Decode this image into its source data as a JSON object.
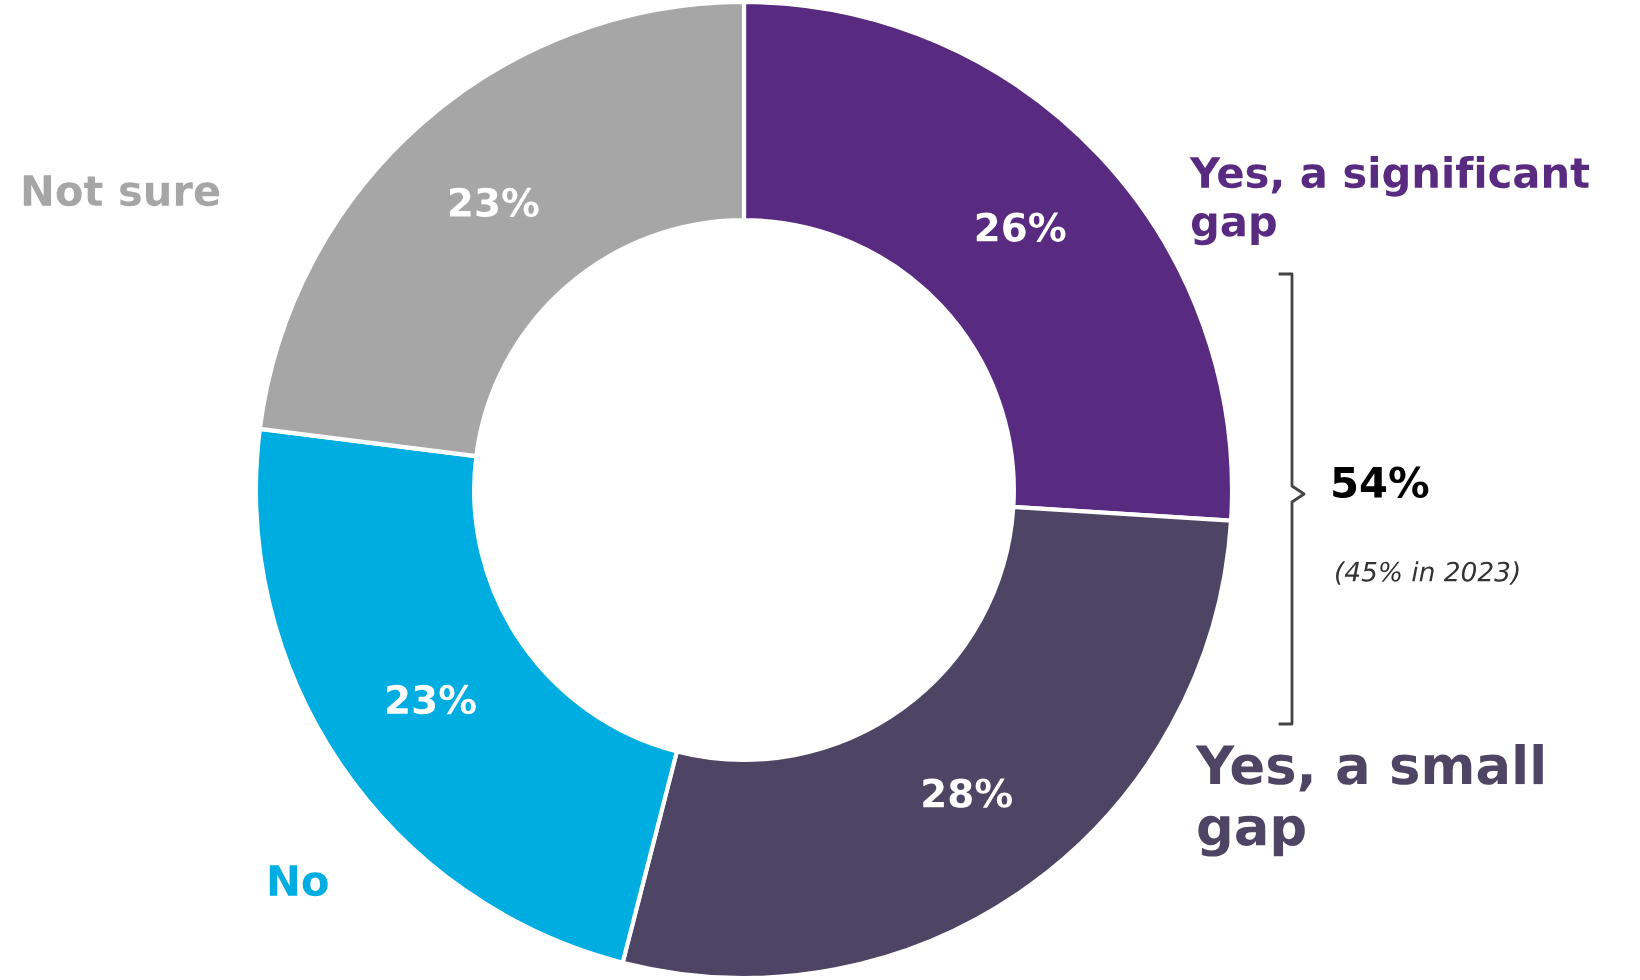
{
  "chart_data": {
    "type": "donut",
    "categories": [
      "Yes, a significant\ngap",
      "Yes, a small\ngap",
      "No",
      "Not sure"
    ],
    "values": [
      26,
      28,
      23,
      23
    ],
    "value_labels": [
      "26%",
      "28%",
      "23%",
      "23%"
    ],
    "colors": [
      "#582a80",
      "#4e4463",
      "#00ade0",
      "#a6a6a6"
    ],
    "annotations": [
      "54%",
      "(45% in 2023)"
    ]
  }
}
